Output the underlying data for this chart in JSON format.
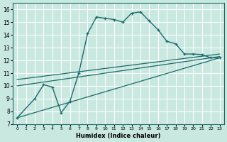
{
  "xlabel": "Humidex (Indice chaleur)",
  "bg_color": "#c8e8e0",
  "grid_color": "#ffffff",
  "line_color": "#1a6b6b",
  "xlim": [
    -0.5,
    23.5
  ],
  "ylim": [
    7,
    16.5
  ],
  "xtick_labels": [
    "0",
    "1",
    "2",
    "3",
    "4",
    "5",
    "6",
    "7",
    "8",
    "9",
    "10",
    "11",
    "12",
    "13",
    "14",
    "15",
    "16",
    "17",
    "18",
    "19",
    "20",
    "21",
    "22",
    "23"
  ],
  "ytick_values": [
    7,
    8,
    9,
    10,
    11,
    12,
    13,
    14,
    15,
    16
  ],
  "main_x": [
    0,
    2,
    3,
    4,
    5,
    6,
    7,
    8,
    9,
    10,
    11,
    12,
    13,
    14,
    15,
    16,
    17,
    18,
    19,
    20,
    21,
    22,
    23
  ],
  "main_y": [
    7.5,
    9.0,
    10.1,
    9.9,
    7.9,
    8.8,
    11.0,
    14.1,
    15.4,
    15.3,
    15.2,
    15.0,
    15.7,
    15.8,
    15.1,
    14.4,
    13.5,
    13.3,
    12.5,
    12.5,
    12.45,
    12.2,
    12.2
  ],
  "trend1_x": [
    0,
    23
  ],
  "trend1_y": [
    7.5,
    12.2
  ],
  "trend2_x": [
    0,
    23
  ],
  "trend2_y": [
    10.0,
    12.3
  ],
  "trend3_x": [
    0,
    23
  ],
  "trend3_y": [
    10.5,
    12.5
  ]
}
